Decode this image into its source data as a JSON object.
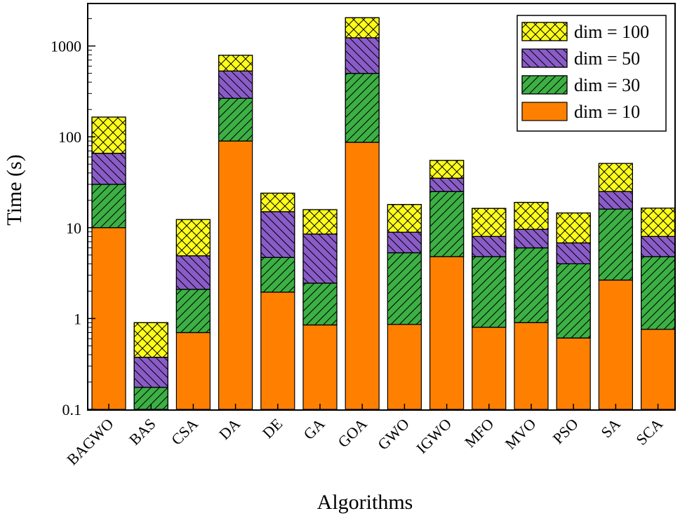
{
  "chart_data": {
    "type": "bar",
    "stacked": true,
    "y_scale": "log",
    "title": "",
    "xlabel": "Algorithms",
    "ylabel": "Time  (s)",
    "ylim": [
      0.1,
      2500
    ],
    "y_ticks": [
      0.1,
      1,
      10,
      100,
      1000
    ],
    "y_tick_labels": [
      "0.1",
      "1",
      "10",
      "100",
      "1000"
    ],
    "categories": [
      "BAGWO",
      "BAS",
      "CSA",
      "DA",
      "DE",
      "GA",
      "GOA",
      "GWO",
      "IGWO",
      "MFO",
      "MVO",
      "PSO",
      "SA",
      "SCA"
    ],
    "series": [
      {
        "name": "dim = 10",
        "color": "#ff8000",
        "pattern": "solid",
        "values": [
          10.0,
          0.1,
          0.7,
          90,
          1.95,
          0.85,
          87,
          0.86,
          4.8,
          0.8,
          0.9,
          0.61,
          2.65,
          0.76
        ]
      },
      {
        "name": "dim = 30",
        "color": "#3cb044",
        "pattern": "diagonal",
        "values": [
          30,
          0.175,
          2.1,
          265,
          4.7,
          2.45,
          500,
          5.3,
          25,
          4.8,
          6.0,
          4.0,
          16,
          4.8
        ]
      },
      {
        "name": "dim = 50",
        "color": "#8a5cc8",
        "pattern": "back-diagonal",
        "values": [
          66,
          0.375,
          4.9,
          530,
          15,
          8.5,
          1230,
          8.9,
          35,
          8.0,
          9.6,
          6.8,
          25,
          8.0
        ]
      },
      {
        "name": "dim = 100",
        "color": "#ffff1a",
        "pattern": "crosshatch",
        "values": [
          165,
          0.9,
          12.3,
          790,
          24,
          15.8,
          2050,
          18,
          55,
          16.3,
          19,
          14.5,
          51,
          16.4
        ]
      }
    ],
    "legend": {
      "position": "top-right",
      "order": [
        "dim = 100",
        "dim = 50",
        "dim = 30",
        "dim = 10"
      ]
    }
  }
}
